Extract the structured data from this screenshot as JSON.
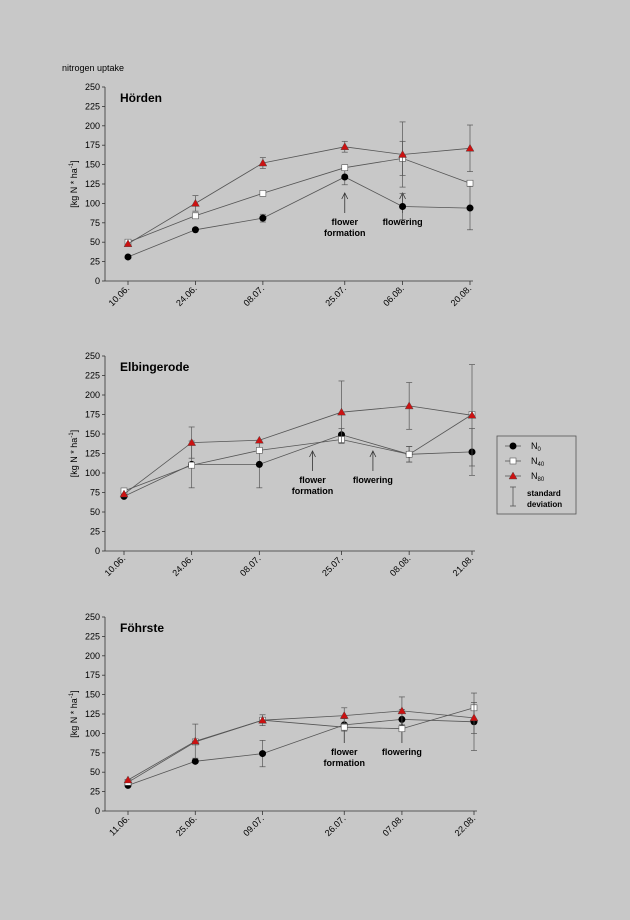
{
  "top_label": "nitrogen uptake",
  "legend": {
    "items": [
      {
        "name": "N",
        "sub": "0",
        "marker": "circle"
      },
      {
        "name": "N",
        "sub": "40",
        "marker": "square"
      },
      {
        "name": "N",
        "sub": "80",
        "marker": "triangle"
      }
    ],
    "sd_line1": "standard",
    "sd_line2": "deviation"
  },
  "colors": {
    "N0": "#000000",
    "N40": "#ffffff",
    "N80": "#cc1111",
    "line": "#555555",
    "background": "#c8c8c8"
  },
  "chart_data": [
    {
      "type": "line",
      "title": "Hörden",
      "ylabel": "[kg N * ha-1]",
      "ylim": [
        0,
        250
      ],
      "yticks": [
        0,
        25,
        50,
        75,
        100,
        125,
        150,
        175,
        200,
        225,
        250
      ],
      "categories": [
        "10.06.",
        "24.06.",
        "08.07.",
        "25.07.",
        "06.08.",
        "20.08."
      ],
      "x": [
        0,
        14,
        28,
        45,
        57,
        71
      ],
      "series": [
        {
          "name": "N0",
          "values": [
            31,
            66,
            81,
            134,
            96,
            94
          ],
          "sd": [
            0,
            0,
            5,
            10,
            17,
            28
          ]
        },
        {
          "name": "N40",
          "values": [
            50,
            84,
            113,
            146,
            158,
            126
          ],
          "sd": [
            0,
            0,
            0,
            0,
            22,
            0
          ]
        },
        {
          "name": "N80",
          "values": [
            48,
            100,
            152,
            173,
            163,
            171
          ],
          "sd": [
            0,
            10,
            7,
            7,
            42,
            30
          ]
        }
      ],
      "annotations": [
        {
          "x": 45,
          "lines": [
            "flower",
            "formation"
          ]
        },
        {
          "x": 57,
          "lines": [
            "flowering"
          ]
        }
      ]
    },
    {
      "type": "line",
      "title": "Elbingerode",
      "ylabel": "[kg N * ha-1]",
      "ylim": [
        0,
        250
      ],
      "yticks": [
        0,
        25,
        50,
        75,
        100,
        125,
        150,
        175,
        200,
        225,
        250
      ],
      "categories": [
        "10.06.",
        "24.06.",
        "08.07.",
        "25.07.",
        "08.08.",
        "21.08."
      ],
      "x": [
        0,
        14,
        28,
        45,
        59,
        72
      ],
      "series": [
        {
          "name": "N0",
          "values": [
            70,
            111,
            111,
            149,
            124,
            127
          ],
          "sd": [
            0,
            30,
            30,
            8,
            10,
            30
          ]
        },
        {
          "name": "N40",
          "values": [
            77,
            110,
            129,
            143,
            124,
            175
          ],
          "sd": [
            0,
            0,
            0,
            0,
            10,
            0
          ]
        },
        {
          "name": "N80",
          "values": [
            73,
            139,
            142,
            178,
            186,
            174
          ],
          "sd": [
            0,
            20,
            0,
            40,
            30,
            65
          ]
        }
      ],
      "annotations": [
        {
          "x": 39,
          "lines": [
            "flower",
            "formation"
          ]
        },
        {
          "x": 51.5,
          "lines": [
            "flowering"
          ]
        }
      ]
    },
    {
      "type": "line",
      "title": "Föhrste",
      "ylabel": "[kg N * ha-1]",
      "ylim": [
        0,
        250
      ],
      "yticks": [
        0,
        25,
        50,
        75,
        100,
        125,
        150,
        175,
        200,
        225,
        250
      ],
      "categories": [
        "11.06.",
        "25.06.",
        "09.07.",
        "26.07.",
        "07.08.",
        "22.08."
      ],
      "x": [
        0,
        14,
        28,
        45,
        57,
        72
      ],
      "series": [
        {
          "name": "N0",
          "values": [
            33,
            64,
            74,
            111,
            118,
            115
          ],
          "sd": [
            0,
            0,
            17,
            8,
            13,
            37
          ]
        },
        {
          "name": "N40",
          "values": [
            37,
            89,
            117,
            108,
            106,
            133
          ],
          "sd": [
            0,
            0,
            0,
            0,
            0,
            0
          ]
        },
        {
          "name": "N80",
          "values": [
            40,
            90,
            117,
            123,
            129,
            120
          ],
          "sd": [
            0,
            22,
            7,
            10,
            18,
            20
          ]
        }
      ],
      "annotations": [
        {
          "x": 45,
          "lines": [
            "flower",
            "formation"
          ]
        },
        {
          "x": 57,
          "lines": [
            "flowering"
          ]
        }
      ]
    }
  ]
}
